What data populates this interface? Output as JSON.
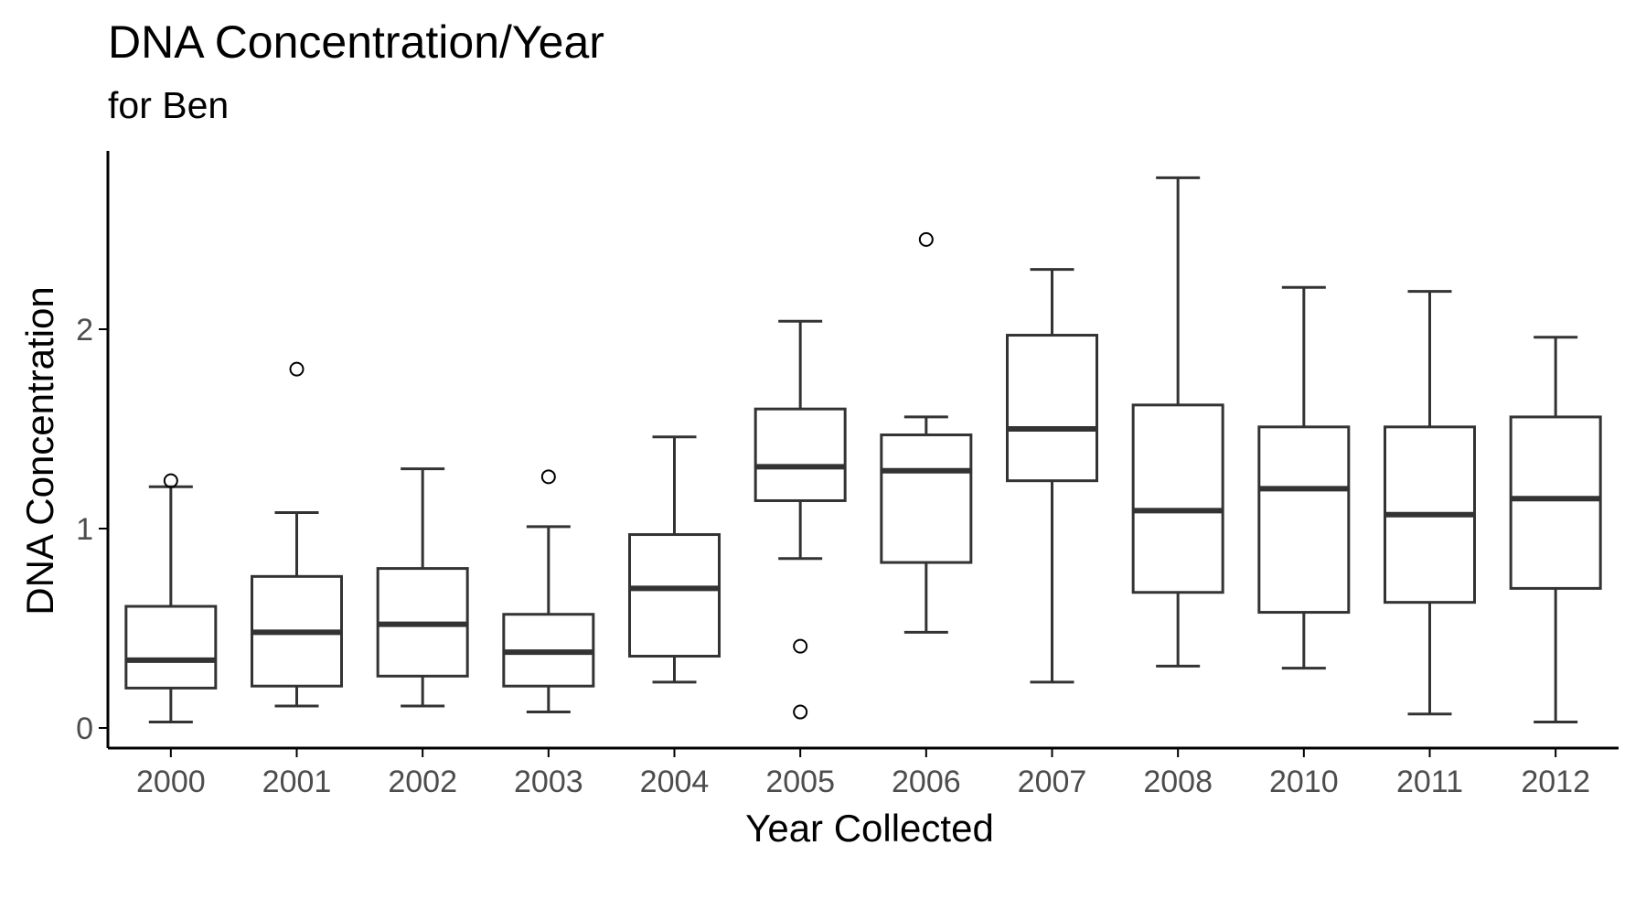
{
  "chart_data": {
    "type": "boxplot",
    "title": "DNA Concentration/Year",
    "subtitle": "for Ben",
    "xlabel": "Year Collected",
    "ylabel": "DNA Concentration",
    "categories": [
      "2000",
      "2001",
      "2002",
      "2003",
      "2004",
      "2005",
      "2006",
      "2007",
      "2008",
      "2010",
      "2011",
      "2012"
    ],
    "y_ticks": [
      0,
      1,
      2
    ],
    "ylim": [
      -0.1,
      2.9
    ],
    "grid": false,
    "legend": "none",
    "colors": {
      "box_stroke": "#333333",
      "box_fill": "#ffffff",
      "axis": "#000000",
      "tick_label": "#4d4d4d"
    },
    "boxes": [
      {
        "category": "2000",
        "min": 0.03,
        "q1": 0.2,
        "median": 0.34,
        "q3": 0.61,
        "max": 1.21,
        "outliers": [
          1.24
        ]
      },
      {
        "category": "2001",
        "min": 0.11,
        "q1": 0.21,
        "median": 0.48,
        "q3": 0.76,
        "max": 1.08,
        "outliers": [
          1.8
        ]
      },
      {
        "category": "2002",
        "min": 0.11,
        "q1": 0.26,
        "median": 0.52,
        "q3": 0.8,
        "max": 1.3,
        "outliers": []
      },
      {
        "category": "2003",
        "min": 0.08,
        "q1": 0.21,
        "median": 0.38,
        "q3": 0.57,
        "max": 1.01,
        "outliers": [
          1.26
        ]
      },
      {
        "category": "2004",
        "min": 0.23,
        "q1": 0.36,
        "median": 0.7,
        "q3": 0.97,
        "max": 1.46,
        "outliers": []
      },
      {
        "category": "2005",
        "min": 0.85,
        "q1": 1.14,
        "median": 1.31,
        "q3": 1.6,
        "max": 2.04,
        "outliers": [
          0.41,
          0.08
        ]
      },
      {
        "category": "2006",
        "min": 0.48,
        "q1": 0.83,
        "median": 1.29,
        "q3": 1.47,
        "max": 1.56,
        "outliers": [
          2.45
        ]
      },
      {
        "category": "2007",
        "min": 0.23,
        "q1": 1.24,
        "median": 1.5,
        "q3": 1.97,
        "max": 2.3,
        "outliers": []
      },
      {
        "category": "2008",
        "min": 0.31,
        "q1": 0.68,
        "median": 1.09,
        "q3": 1.62,
        "max": 2.76,
        "outliers": []
      },
      {
        "category": "2010",
        "min": 0.3,
        "q1": 0.58,
        "median": 1.2,
        "q3": 1.51,
        "max": 2.21,
        "outliers": []
      },
      {
        "category": "2011",
        "min": 0.07,
        "q1": 0.63,
        "median": 1.07,
        "q3": 1.51,
        "max": 2.19,
        "outliers": []
      },
      {
        "category": "2012",
        "min": 0.03,
        "q1": 0.7,
        "median": 1.15,
        "q3": 1.56,
        "max": 1.96,
        "outliers": []
      }
    ]
  }
}
